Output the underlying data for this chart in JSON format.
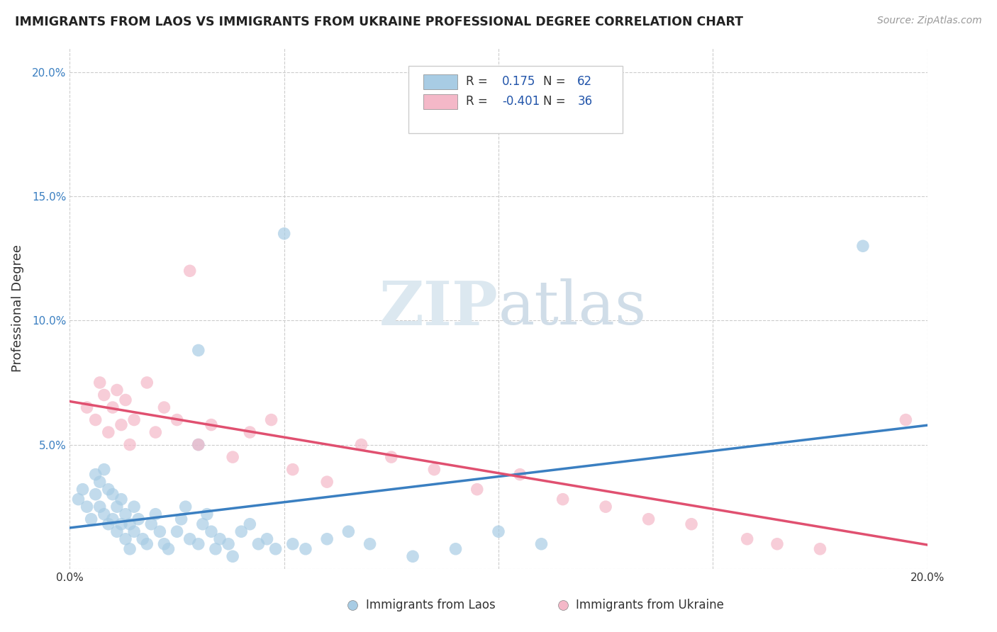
{
  "title": "IMMIGRANTS FROM LAOS VS IMMIGRANTS FROM UKRAINE PROFESSIONAL DEGREE CORRELATION CHART",
  "source": "Source: ZipAtlas.com",
  "ylabel_label": "Professional Degree",
  "xlim": [
    0.0,
    0.2
  ],
  "ylim": [
    0.0,
    0.21
  ],
  "laos_R": 0.175,
  "laos_N": 62,
  "ukraine_R": -0.401,
  "ukraine_N": 36,
  "laos_color": "#a8cce4",
  "ukraine_color": "#f4b8c8",
  "laos_line_color": "#3a7fc1",
  "ukraine_line_color": "#e05070",
  "background_color": "#ffffff",
  "grid_color": "#cccccc",
  "legend_text_color": "#333333",
  "legend_value_color": "#2255aa",
  "laos_scatter_x": [
    0.002,
    0.003,
    0.004,
    0.005,
    0.006,
    0.006,
    0.007,
    0.007,
    0.008,
    0.008,
    0.009,
    0.009,
    0.01,
    0.01,
    0.011,
    0.011,
    0.012,
    0.012,
    0.013,
    0.013,
    0.014,
    0.014,
    0.015,
    0.015,
    0.016,
    0.017,
    0.018,
    0.019,
    0.02,
    0.021,
    0.022,
    0.023,
    0.025,
    0.026,
    0.027,
    0.028,
    0.03,
    0.031,
    0.032,
    0.033,
    0.034,
    0.035,
    0.037,
    0.038,
    0.04,
    0.042,
    0.044,
    0.046,
    0.048,
    0.052,
    0.055,
    0.06,
    0.065,
    0.07,
    0.08,
    0.09,
    0.1,
    0.11,
    0.03,
    0.05,
    0.185,
    0.03
  ],
  "laos_scatter_y": [
    0.028,
    0.032,
    0.025,
    0.02,
    0.038,
    0.03,
    0.035,
    0.025,
    0.04,
    0.022,
    0.032,
    0.018,
    0.03,
    0.02,
    0.025,
    0.015,
    0.028,
    0.018,
    0.022,
    0.012,
    0.018,
    0.008,
    0.025,
    0.015,
    0.02,
    0.012,
    0.01,
    0.018,
    0.022,
    0.015,
    0.01,
    0.008,
    0.015,
    0.02,
    0.025,
    0.012,
    0.01,
    0.018,
    0.022,
    0.015,
    0.008,
    0.012,
    0.01,
    0.005,
    0.015,
    0.018,
    0.01,
    0.012,
    0.008,
    0.01,
    0.008,
    0.012,
    0.015,
    0.01,
    0.005,
    0.008,
    0.015,
    0.01,
    0.088,
    0.135,
    0.13,
    0.05
  ],
  "ukraine_scatter_x": [
    0.004,
    0.006,
    0.007,
    0.008,
    0.009,
    0.01,
    0.011,
    0.012,
    0.013,
    0.014,
    0.015,
    0.018,
    0.02,
    0.022,
    0.025,
    0.028,
    0.03,
    0.033,
    0.038,
    0.042,
    0.047,
    0.052,
    0.06,
    0.068,
    0.075,
    0.085,
    0.095,
    0.105,
    0.115,
    0.125,
    0.135,
    0.145,
    0.158,
    0.165,
    0.175,
    0.195
  ],
  "ukraine_scatter_y": [
    0.065,
    0.06,
    0.075,
    0.07,
    0.055,
    0.065,
    0.072,
    0.058,
    0.068,
    0.05,
    0.06,
    0.075,
    0.055,
    0.065,
    0.06,
    0.12,
    0.05,
    0.058,
    0.045,
    0.055,
    0.06,
    0.04,
    0.035,
    0.05,
    0.045,
    0.04,
    0.032,
    0.038,
    0.028,
    0.025,
    0.02,
    0.018,
    0.012,
    0.01,
    0.008,
    0.06
  ]
}
